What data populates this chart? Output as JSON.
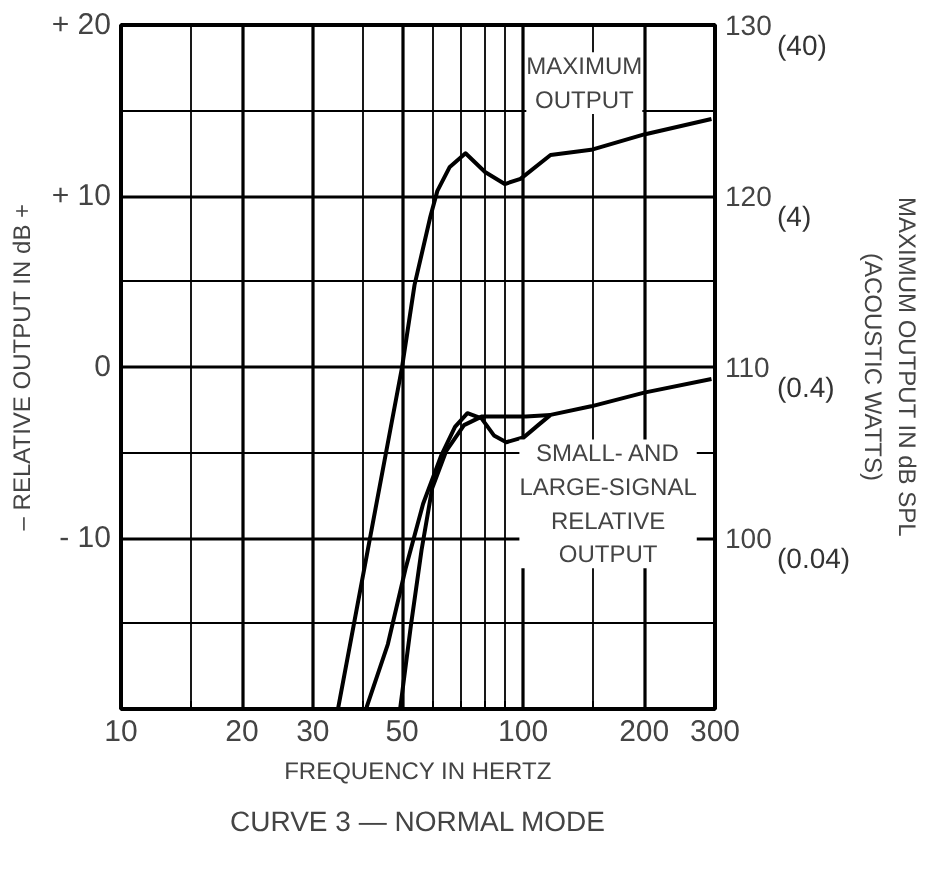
{
  "chart_data": {
    "type": "line",
    "xlabel": "FREQUENCY IN HERTZ",
    "ylabel": "– RELATIVE OUTPUT IN dB +",
    "y2label": "MAXIMUM OUTPUT IN dB SPL\n(ACOUSTIC WATTS)",
    "title": "CURVE 3 — NORMAL MODE",
    "log": "x",
    "grid": true,
    "marker": "none",
    "line_style": "solid",
    "xlim": [
      10,
      300
    ],
    "xticks": [
      10,
      {
        "value": 15,
        "label": null
      },
      20,
      30,
      {
        "value": 40,
        "label": null
      },
      50,
      {
        "value": 60,
        "label": null
      },
      {
        "value": 70,
        "label": null
      },
      {
        "value": 80,
        "label": null
      },
      {
        "value": 90,
        "label": null
      },
      100,
      {
        "value": 150,
        "label": null
      },
      200,
      300
    ],
    "ylim": [
      -20,
      20
    ],
    "yticks": [
      {
        "value": -20,
        "label": null
      },
      {
        "value": -15,
        "label": null
      },
      {
        "value": -10,
        "label": "- 10"
      },
      {
        "value": -5,
        "label": null
      },
      0,
      {
        "value": 5,
        "label": null
      },
      {
        "value": 10,
        "label": "+ 10"
      },
      {
        "value": 15,
        "label": null
      },
      {
        "value": 20,
        "label": "+ 20"
      }
    ],
    "y2lim": [
      90,
      130
    ],
    "y2ticks": [
      100,
      110,
      120,
      130
    ],
    "series": [
      {
        "color": "#000000",
        "axis": "y2",
        "x": [
          34.7,
          50,
          53.7,
          58.8,
          61.2,
          65.7,
          71.9,
          80.4,
          90,
          98.5,
          117,
          147.6,
          200,
          294
        ],
        "values": [
          90.1,
          110,
          114.8,
          118.8,
          120.3,
          121.7,
          122.5,
          121.4,
          120.7,
          121,
          122.4,
          122.7,
          123.6,
          124.5
        ]
      },
      {
        "color": "#000000",
        "x": [
          40.8,
          46.1,
          51,
          56.4,
          62.5,
          67.7,
          72.7,
          78.8,
          84.6,
          90.8,
          100.5,
          109,
          117,
          147.6,
          200,
          294
        ],
        "values": [
          -19.9,
          -16.2,
          -11.8,
          -8,
          -5.2,
          -3.5,
          -2.7,
          -3,
          -4,
          -4.4,
          -4.1,
          -3.4,
          -2.8,
          -2.3,
          -1.5,
          -0.7
        ]
      },
      {
        "color": "#000000",
        "x": [
          49.5,
          52.6,
          55.9,
          59.4,
          64.4,
          71.3,
          78.8,
          89,
          101.6,
          117
        ],
        "values": [
          -19.9,
          -15.1,
          -10.7,
          -7.1,
          -4.9,
          -3.4,
          -2.9,
          -2.9,
          -2.9,
          -2.8
        ]
      }
    ],
    "annotations": [
      "MAXIMUM\nOUTPUT",
      "SMALL- AND\nLARGE-SIGNAL\nRELATIVE\nOUTPUT",
      "(0.04)",
      "(0.4)",
      "(4)",
      "(40)"
    ]
  }
}
